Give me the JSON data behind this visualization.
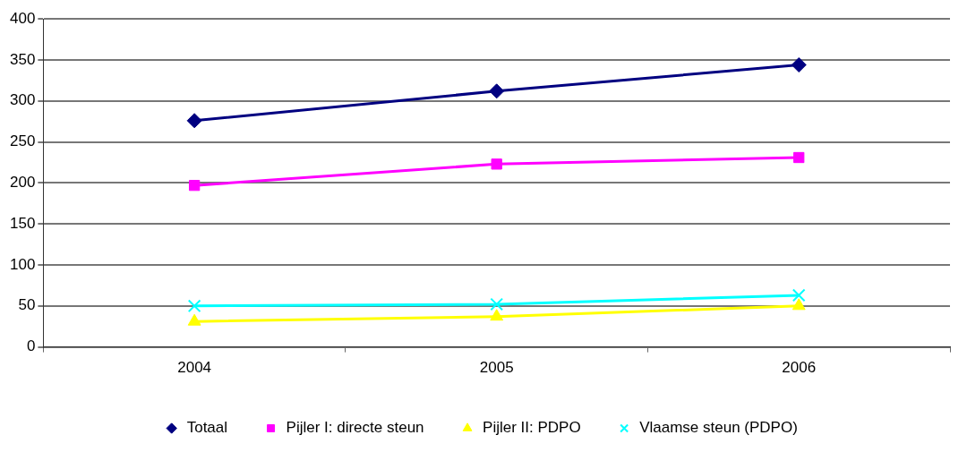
{
  "chart_data": {
    "type": "line",
    "categories": [
      "2004",
      "2005",
      "2006"
    ],
    "series": [
      {
        "name": "Totaal",
        "color": "#000080",
        "marker": "diamond",
        "values": [
          276,
          312,
          344
        ]
      },
      {
        "name": "Pijler I: directe steun",
        "color": "#ff00ff",
        "marker": "square",
        "values": [
          197,
          223,
          231
        ]
      },
      {
        "name": "Pijler II: PDPO",
        "color": "#ffff00",
        "marker": "triangle",
        "values": [
          31,
          37,
          50
        ]
      },
      {
        "name": "Vlaamse steun (PDPO)",
        "color": "#00ffff",
        "marker": "cross",
        "values": [
          50,
          52,
          63
        ]
      }
    ],
    "ylim": [
      0,
      400
    ],
    "yticks": [
      0,
      50,
      100,
      150,
      200,
      250,
      300,
      350,
      400
    ],
    "grid": "y",
    "legend": "bottom",
    "line_style": "solid"
  }
}
